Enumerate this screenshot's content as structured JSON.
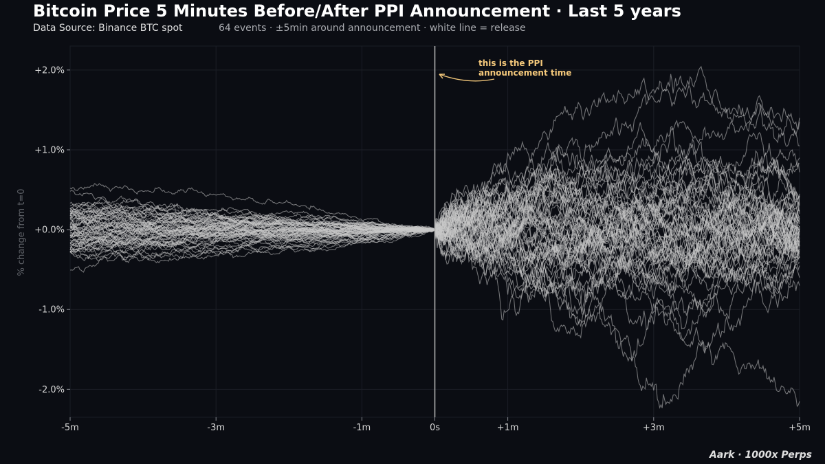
{
  "title": "Bitcoin Price 5 Minutes Before/After PPI Announcement  ·  Last 5 years",
  "source": "Data Source: Binance BTC spot",
  "subtitle": "64 events  ·  ±5min around announcement  ·  white line = release",
  "branding": "Aark · 1000x Perps",
  "colors": {
    "background": "#0b0d13",
    "series": "#c8c8c8",
    "release_line": "#b0b0b0",
    "annotation": "#f5c97b",
    "grid": "#1c1f27"
  },
  "chart_data": {
    "type": "line",
    "title": "Bitcoin Price 5 Minutes Before/After PPI Announcement  ·  Last 5 years",
    "xlabel": "",
    "ylabel": "% change from t=0",
    "xlim": [
      -5,
      5
    ],
    "ylim": [
      -2.35,
      2.3
    ],
    "x_ticks": [
      -5,
      -3,
      -1,
      0,
      1,
      3,
      5
    ],
    "x_tick_labels": [
      "-5m",
      "-3m",
      "-1m",
      "0s",
      "+1m",
      "+3m",
      "+5m"
    ],
    "y_ticks": [
      2,
      1,
      0,
      -1,
      -2
    ],
    "y_tick_labels": [
      "+2.0%",
      "+1.0%",
      "+0.0%",
      "-1.0%",
      "-2.0%"
    ],
    "grid": true,
    "event_count": 64,
    "release_time": 0,
    "annotation": {
      "text": [
        "this is the PPI",
        "announcement time"
      ],
      "points_to": [
        0,
        1.95
      ]
    },
    "series_summary": {
      "end_values_approx": [
        1.4,
        1.35,
        1.05,
        0.9,
        0.82,
        0.72,
        0.45,
        0.3,
        0.2,
        0.1,
        0.0,
        -0.1,
        -0.15,
        -0.25,
        -0.35,
        -0.45,
        -0.6,
        -0.7,
        -2.15
      ],
      "max_approx": 2.08,
      "min_approx": -2.15
    }
  }
}
